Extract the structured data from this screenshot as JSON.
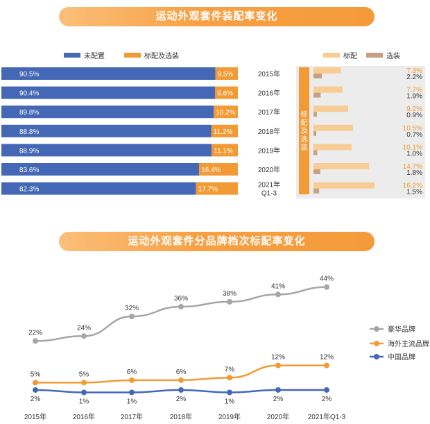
{
  "section1": {
    "title": "运动外观套件装配率变化",
    "legend_left": {
      "not_configured": "未配置",
      "standard_optional": "标配及选装"
    },
    "legend_right": {
      "standard": "标配",
      "optional": "选装"
    },
    "side_label": "标配及选装"
  },
  "section2": {
    "title": "运动外观套件分品牌档次标配率变化"
  },
  "colors": {
    "blue": "#4468b5",
    "orange": "#f29a34",
    "light_orange": "#f8cd95",
    "tan": "#c7a083",
    "gray": "#a6a6a6",
    "panel_bg": "#ececec",
    "banner": "#f7a043"
  },
  "chart_data": [
    {
      "type": "bar",
      "stacked": true,
      "orientation": "horizontal",
      "categories": [
        "2015年",
        "2016年",
        "2017年",
        "2018年",
        "2019年",
        "2020年",
        "2021年 Q1-3"
      ],
      "series": [
        {
          "name": "未配置",
          "values": [
            90.5,
            90.4,
            89.8,
            88.8,
            88.9,
            83.6,
            82.3
          ],
          "labels": [
            "90.5%",
            "90.4%",
            "89.8%",
            "88.8%",
            "88.9%",
            "83.6%",
            "82.3%"
          ]
        },
        {
          "name": "标配及选装",
          "values": [
            9.5,
            9.6,
            10.2,
            11.2,
            11.1,
            16.4,
            17.7
          ],
          "labels": [
            "9.5%",
            "9.6%",
            "10.2%",
            "11.2%",
            "11.1%",
            "16.4%",
            "17.7%"
          ]
        }
      ],
      "xlim": [
        0,
        100
      ]
    },
    {
      "type": "bar",
      "orientation": "horizontal",
      "categories": [
        "2015年",
        "2016年",
        "2017年",
        "2018年",
        "2019年",
        "2020年",
        "2021年 Q1-3"
      ],
      "series": [
        {
          "name": "标配",
          "values": [
            7.3,
            7.7,
            9.2,
            10.5,
            10.1,
            14.7,
            16.2
          ],
          "labels": [
            "7.3%",
            "7.7%",
            "9.2%",
            "10.5%",
            "10.1%",
            "14.7%",
            "16.2%"
          ]
        },
        {
          "name": "选装",
          "values": [
            2.2,
            1.9,
            0.9,
            0.7,
            1.0,
            1.8,
            1.5
          ],
          "labels": [
            "2.2%",
            "1.9%",
            "0.9%",
            "0.7%",
            "1.0%",
            "1.8%",
            "1.5%"
          ]
        }
      ],
      "xlim": [
        0,
        17
      ]
    },
    {
      "type": "line",
      "categories": [
        "2015年",
        "2016年",
        "2017年",
        "2018年",
        "2019年",
        "2020年",
        "2021年Q1-3"
      ],
      "series": [
        {
          "name": "豪华品牌",
          "values": [
            22,
            24,
            32,
            36,
            38,
            41,
            44
          ],
          "labels": [
            "22%",
            "24%",
            "32%",
            "36%",
            "38%",
            "41%",
            "44%"
          ]
        },
        {
          "name": "海外主流品牌",
          "values": [
            5,
            5,
            6,
            6,
            7,
            12,
            12
          ],
          "labels": [
            "5%",
            "5%",
            "6%",
            "6%",
            "7%",
            "12%",
            "12%"
          ]
        },
        {
          "name": "中国品牌",
          "values": [
            2,
            1,
            1,
            2,
            1,
            2,
            2
          ],
          "labels": [
            "2%",
            "1%",
            "1%",
            "2%",
            "1%",
            "2%",
            "2%"
          ]
        }
      ],
      "ylim": [
        0,
        50
      ]
    }
  ]
}
